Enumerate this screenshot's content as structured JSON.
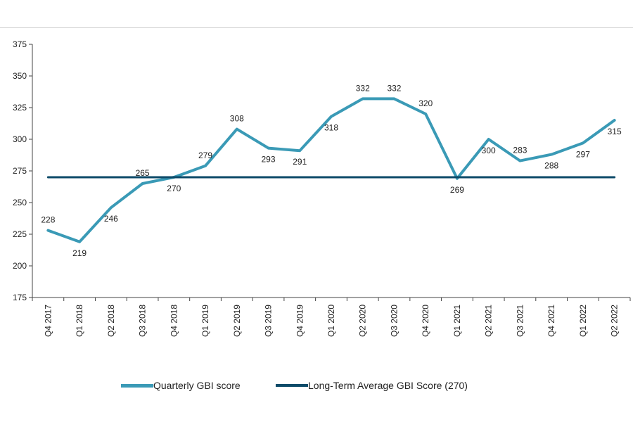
{
  "chart_data": {
    "type": "line",
    "categories": [
      "Q4 2017",
      "Q1 2018",
      "Q2 2018",
      "Q3 2018",
      "Q4 2018",
      "Q1 2019",
      "Q2 2019",
      "Q3 2019",
      "Q4 2019",
      "Q1 2020",
      "Q2 2020",
      "Q3 2020",
      "Q4 2020",
      "Q1 2021",
      "Q2 2021",
      "Q3 2021",
      "Q4 2021",
      "Q1 2022",
      "Q2 2022"
    ],
    "series": [
      {
        "name": "Quarterly GBI score",
        "color": "#3a9ab6",
        "values": [
          228,
          219,
          246,
          265,
          270,
          279,
          308,
          293,
          291,
          318,
          332,
          332,
          320,
          269,
          300,
          283,
          288,
          297,
          315
        ]
      },
      {
        "name": "Long-Term Average GBI Score (270)",
        "color": "#0d4a68",
        "values": [
          270,
          270,
          270,
          270,
          270,
          270,
          270,
          270,
          270,
          270,
          270,
          270,
          270,
          270,
          270,
          270,
          270,
          270,
          270
        ]
      }
    ],
    "ylim": [
      175,
      375
    ],
    "yticks": [
      175,
      200,
      225,
      250,
      275,
      300,
      325,
      350,
      375
    ],
    "grid": false,
    "legend": "bottom"
  }
}
